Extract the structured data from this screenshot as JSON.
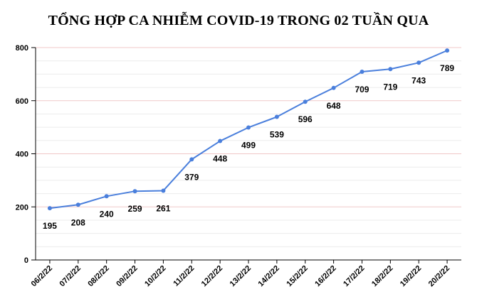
{
  "chart_data": {
    "type": "line",
    "title": "TỔNG HỢP CA NHIỄM COVID-19 TRONG 02 TUẦN QUA",
    "categories": [
      "06/2/22",
      "07/2/22",
      "08/2/22",
      "09/2/22",
      "10/2/22",
      "11/2/22",
      "12/2/22",
      "13/2/22",
      "14/2/22",
      "15/2/22",
      "16/2/22",
      "17/2/22",
      "18/2/22",
      "19/2/22",
      "20/2/22"
    ],
    "values": [
      195,
      208,
      240,
      259,
      261,
      379,
      448,
      499,
      539,
      596,
      648,
      709,
      719,
      743,
      789
    ],
    "data_labels": [
      "195",
      "208",
      "240",
      "259",
      "261",
      "379",
      "448",
      "499",
      "539",
      "596",
      "648",
      "709",
      "719",
      "743",
      "789"
    ],
    "ylim": [
      0,
      800
    ],
    "yticks": [
      0,
      200,
      400,
      600,
      800
    ],
    "ytick_labels": [
      "0",
      "200",
      "400",
      "600",
      "800"
    ],
    "xlabel": "",
    "ylabel": "",
    "grid": true,
    "legend": "none",
    "line_color": "#4a7fdc",
    "grid_color": "#f0c8c8",
    "minor_grid_color": "#ececec"
  }
}
